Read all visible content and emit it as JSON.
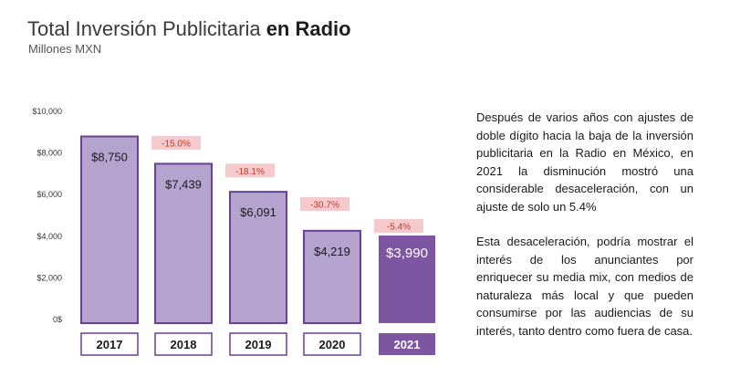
{
  "title": {
    "regular": "Total Inversión Publicitaria ",
    "bold": "en Radio"
  },
  "subtitle": "Millones MXN",
  "colors": {
    "bar_fill": "#b5a3cf",
    "bar_stroke": "#6a3f96",
    "bar_highlight": "#7d55a0",
    "change_box": "#f6c9cc",
    "change_text": "#c0392b"
  },
  "chart_data": {
    "type": "bar",
    "categories": [
      "2017",
      "2018",
      "2019",
      "2020",
      "2021"
    ],
    "values": [
      8750,
      7439,
      6091,
      4219,
      3990
    ],
    "value_labels": [
      "$8,750",
      "$7,439",
      "$6,091",
      "$4,219",
      "$3,990"
    ],
    "changes": [
      "-15.0%",
      "-18.1%",
      "-30.7%",
      "-5.4%"
    ],
    "ylim": [
      0,
      10000
    ],
    "yticks": [
      0,
      2000,
      4000,
      6000,
      8000,
      10000
    ],
    "ytick_labels": [
      "0$",
      "$2,000",
      "$4,000",
      "$6,000",
      "$8,000",
      "$10,000"
    ],
    "highlight_index": 4
  },
  "text": {
    "para1": "Después de varios años con ajustes de doble dígito hacia la baja  de  la inversión publicitaria en la Radio en México, en 2021 la disminución mostró una considerable desaceleración, con un ajuste de solo un  5.4%",
    "para2": "Esta desaceleración, podría mostrar el interés de los anunciantes por enriquecer su media mix, con medios de naturaleza más local y que pueden consumirse por las  audiencias de su interés, tanto dentro como fuera de casa."
  }
}
